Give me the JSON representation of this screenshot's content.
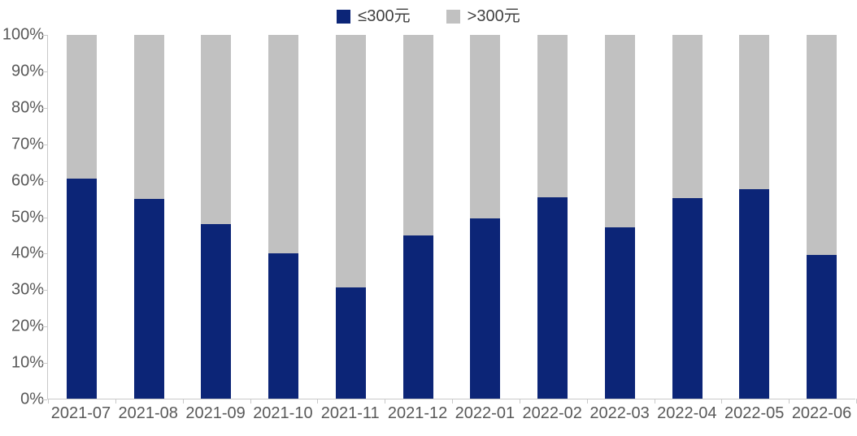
{
  "chart_data": {
    "type": "bar",
    "stacked": true,
    "percent_stacked": true,
    "title": "",
    "xlabel": "",
    "ylabel": "",
    "categories": [
      "2021-07",
      "2021-08",
      "2021-09",
      "2021-10",
      "2021-11",
      "2021-12",
      "2022-01",
      "2022-02",
      "2022-03",
      "2022-04",
      "2022-05",
      "2022-06"
    ],
    "series": [
      {
        "name": "≤300元",
        "color": "#0c2577",
        "values": [
          60.5,
          54.9,
          48.1,
          39.9,
          30.5,
          44.9,
          49.5,
          55.4,
          47.2,
          55.2,
          57.6,
          39.5
        ]
      },
      {
        "name": ">300元",
        "color": "#c1c1c1",
        "values": [
          39.5,
          45.1,
          51.9,
          60.1,
          69.5,
          55.1,
          50.5,
          44.6,
          52.8,
          44.8,
          42.4,
          60.5
        ]
      }
    ],
    "ylim": [
      0,
      100
    ],
    "y_ticks": [
      "0%",
      "10%",
      "20%",
      "30%",
      "40%",
      "50%",
      "60%",
      "70%",
      "80%",
      "90%",
      "100%"
    ],
    "y_tick_values": [
      0,
      10,
      20,
      30,
      40,
      50,
      60,
      70,
      80,
      90,
      100
    ],
    "grid": false,
    "legend_position": "top-center",
    "axis_color": "#c9c9c9",
    "tick_label_color": "#595959",
    "background_color": "#ffffff"
  }
}
